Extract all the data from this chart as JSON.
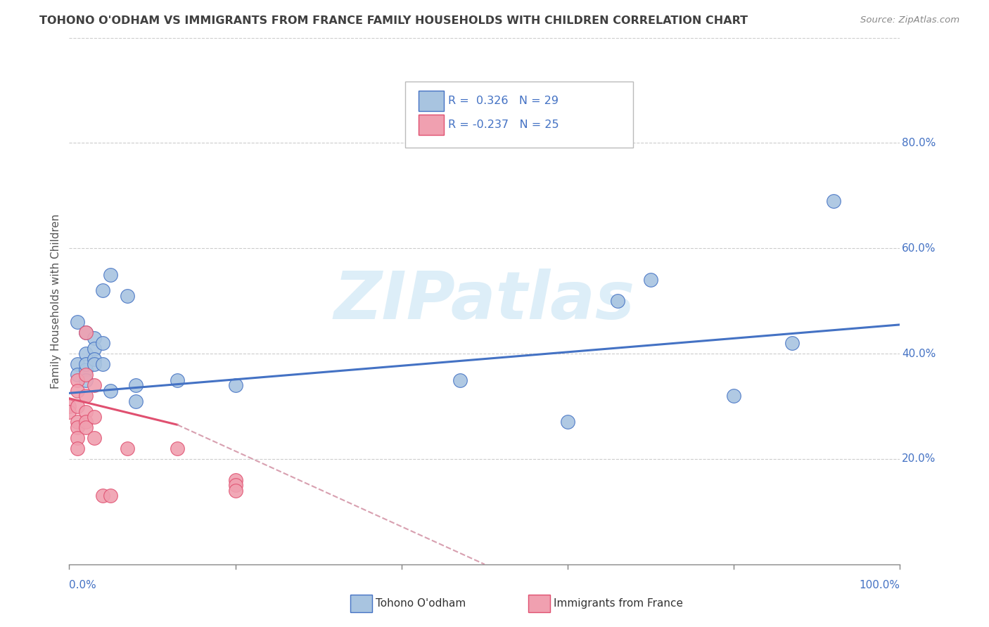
{
  "title": "TOHONO O'ODHAM VS IMMIGRANTS FROM FRANCE FAMILY HOUSEHOLDS WITH CHILDREN CORRELATION CHART",
  "source": "Source: ZipAtlas.com",
  "ylabel": "Family Households with Children",
  "watermark": "ZIPatlas",
  "legend_blue_r": "R =  0.326",
  "legend_blue_n": "N = 29",
  "legend_pink_r": "R = -0.237",
  "legend_pink_n": "N = 25",
  "xlim": [
    0.0,
    1.0
  ],
  "ylim": [
    0.0,
    1.0
  ],
  "xticks": [
    0.0,
    0.2,
    0.4,
    0.6,
    0.8,
    1.0
  ],
  "yticks": [
    0.2,
    0.4,
    0.6,
    0.8
  ],
  "xtick_labels_left": "0.0%",
  "xtick_labels_right": "100.0%",
  "ytick_labels": [
    "20.0%",
    "40.0%",
    "60.0%",
    "80.0%"
  ],
  "blue_dots": [
    [
      0.01,
      0.46
    ],
    [
      0.01,
      0.38
    ],
    [
      0.01,
      0.36
    ],
    [
      0.02,
      0.44
    ],
    [
      0.02,
      0.4
    ],
    [
      0.02,
      0.37
    ],
    [
      0.02,
      0.35
    ],
    [
      0.02,
      0.38
    ],
    [
      0.03,
      0.43
    ],
    [
      0.03,
      0.41
    ],
    [
      0.03,
      0.39
    ],
    [
      0.03,
      0.38
    ],
    [
      0.04,
      0.52
    ],
    [
      0.04,
      0.42
    ],
    [
      0.04,
      0.38
    ],
    [
      0.05,
      0.55
    ],
    [
      0.05,
      0.33
    ],
    [
      0.07,
      0.51
    ],
    [
      0.08,
      0.34
    ],
    [
      0.08,
      0.31
    ],
    [
      0.13,
      0.35
    ],
    [
      0.2,
      0.34
    ],
    [
      0.47,
      0.35
    ],
    [
      0.6,
      0.27
    ],
    [
      0.66,
      0.5
    ],
    [
      0.7,
      0.54
    ],
    [
      0.8,
      0.32
    ],
    [
      0.87,
      0.42
    ],
    [
      0.92,
      0.69
    ]
  ],
  "pink_dots": [
    [
      0.0,
      0.3
    ],
    [
      0.0,
      0.29
    ],
    [
      0.01,
      0.35
    ],
    [
      0.01,
      0.33
    ],
    [
      0.01,
      0.3
    ],
    [
      0.01,
      0.27
    ],
    [
      0.01,
      0.26
    ],
    [
      0.01,
      0.24
    ],
    [
      0.01,
      0.22
    ],
    [
      0.02,
      0.44
    ],
    [
      0.02,
      0.36
    ],
    [
      0.02,
      0.32
    ],
    [
      0.02,
      0.29
    ],
    [
      0.02,
      0.27
    ],
    [
      0.02,
      0.26
    ],
    [
      0.03,
      0.34
    ],
    [
      0.03,
      0.28
    ],
    [
      0.03,
      0.24
    ],
    [
      0.04,
      0.13
    ],
    [
      0.05,
      0.13
    ],
    [
      0.07,
      0.22
    ],
    [
      0.13,
      0.22
    ],
    [
      0.2,
      0.16
    ],
    [
      0.2,
      0.15
    ],
    [
      0.2,
      0.14
    ]
  ],
  "blue_line": [
    [
      0.0,
      0.325
    ],
    [
      1.0,
      0.455
    ]
  ],
  "pink_line_solid": [
    [
      0.0,
      0.315
    ],
    [
      0.13,
      0.265
    ]
  ],
  "pink_line_dash": [
    [
      0.13,
      0.265
    ],
    [
      0.5,
      0.0
    ]
  ],
  "blue_dot_color": "#a8c4e0",
  "pink_dot_color": "#f0a0b0",
  "blue_line_color": "#4472c4",
  "pink_line_color": "#e05070",
  "pink_dash_color": "#d8a0b0",
  "background_color": "#ffffff",
  "grid_color": "#cccccc",
  "title_color": "#404040",
  "source_color": "#888888",
  "watermark_color": "#ddeef8",
  "legend_label_blue": "Tohono O'odham",
  "legend_label_pink": "Immigrants from France"
}
